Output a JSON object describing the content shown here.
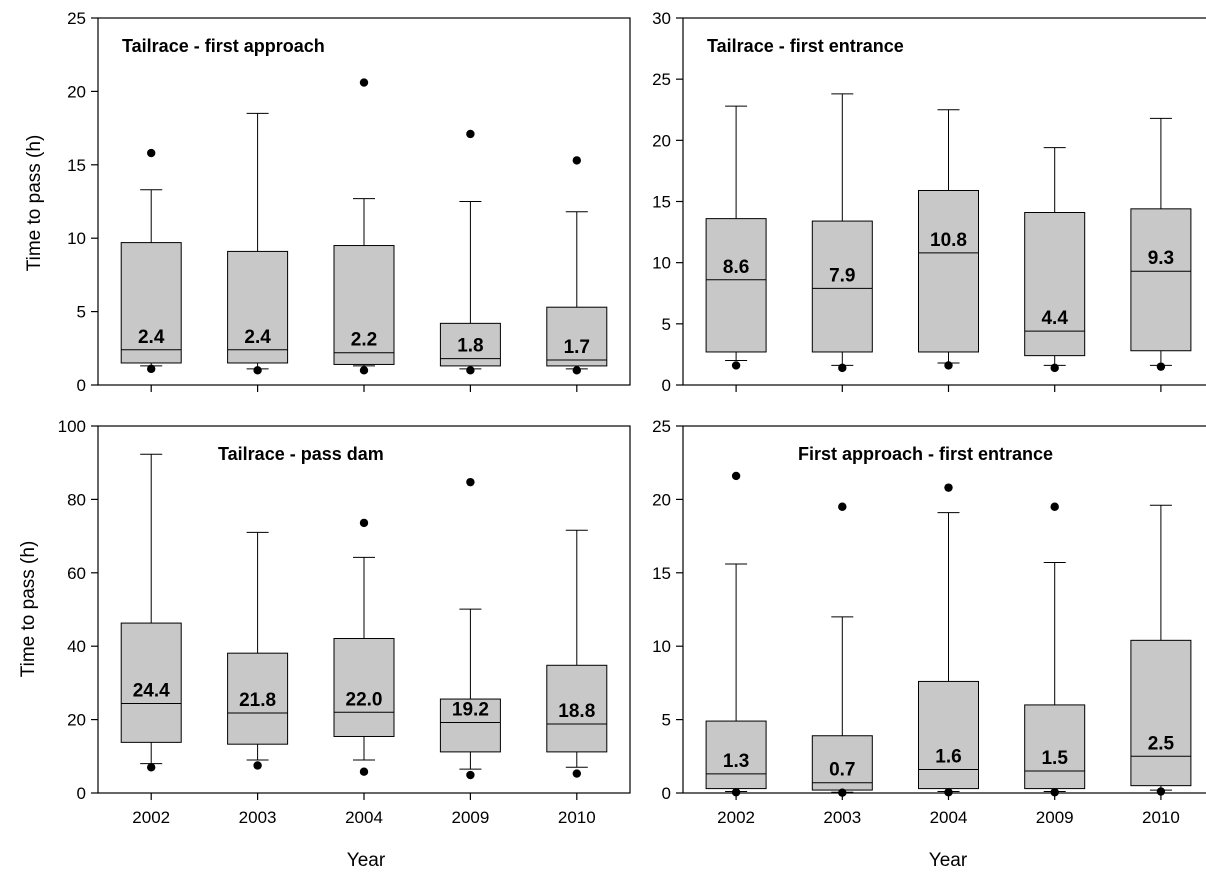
{
  "x_axis_title": "Year",
  "y_axis_title": "Time to pass (h)",
  "colors": {
    "box_fill": "#c8c8c8",
    "stroke": "#000000",
    "background": "#ffffff"
  },
  "chart_data": [
    {
      "type": "boxplot",
      "title": "Tailrace - first approach",
      "xlabel": "",
      "ylabel": "Time to pass (h)",
      "ylim": [
        0,
        25
      ],
      "yticks": [
        0,
        5,
        10,
        15,
        20,
        25
      ],
      "categories": [
        "2002",
        "2003",
        "2004",
        "2009",
        "2010"
      ],
      "boxes": [
        {
          "category": "2002",
          "whisker_low": 1.3,
          "q1": 1.5,
          "median": 2.4,
          "q3": 9.7,
          "whisker_high": 13.3,
          "outliers": [
            1.1,
            15.8
          ],
          "median_label": "2.4"
        },
        {
          "category": "2003",
          "whisker_low": 1.1,
          "q1": 1.5,
          "median": 2.4,
          "q3": 9.1,
          "whisker_high": 18.5,
          "outliers": [
            1.0
          ],
          "median_label": "2.4"
        },
        {
          "category": "2004",
          "whisker_low": 1.3,
          "q1": 1.4,
          "median": 2.2,
          "q3": 9.5,
          "whisker_high": 12.7,
          "outliers": [
            1.0,
            20.6
          ],
          "median_label": "2.2"
        },
        {
          "category": "2009",
          "whisker_low": 1.1,
          "q1": 1.3,
          "median": 1.8,
          "q3": 4.2,
          "whisker_high": 12.5,
          "outliers": [
            1.0,
            17.1
          ],
          "median_label": "1.8"
        },
        {
          "category": "2010",
          "whisker_low": 1.1,
          "q1": 1.3,
          "median": 1.7,
          "q3": 5.3,
          "whisker_high": 11.8,
          "outliers": [
            1.0,
            15.3
          ],
          "median_label": "1.7"
        }
      ]
    },
    {
      "type": "boxplot",
      "title": "Tailrace - first entrance",
      "xlabel": "",
      "ylabel": "",
      "ylim": [
        0,
        30
      ],
      "yticks": [
        0,
        5,
        10,
        15,
        20,
        25,
        30
      ],
      "categories": [
        "2002",
        "2003",
        "2004",
        "2009",
        "2010"
      ],
      "boxes": [
        {
          "category": "2002",
          "whisker_low": 2.0,
          "q1": 2.7,
          "median": 8.6,
          "q3": 13.6,
          "whisker_high": 22.8,
          "outliers": [
            1.6
          ],
          "median_label": "8.6"
        },
        {
          "category": "2003",
          "whisker_low": 1.6,
          "q1": 2.7,
          "median": 7.9,
          "q3": 13.4,
          "whisker_high": 23.8,
          "outliers": [
            1.4
          ],
          "median_label": "7.9"
        },
        {
          "category": "2004",
          "whisker_low": 1.8,
          "q1": 2.7,
          "median": 10.8,
          "q3": 15.9,
          "whisker_high": 22.5,
          "outliers": [
            1.6
          ],
          "median_label": "10.8"
        },
        {
          "category": "2009",
          "whisker_low": 1.6,
          "q1": 2.4,
          "median": 4.4,
          "q3": 14.1,
          "whisker_high": 19.4,
          "outliers": [
            1.4
          ],
          "median_label": "4.4"
        },
        {
          "category": "2010",
          "whisker_low": 1.6,
          "q1": 2.8,
          "median": 9.3,
          "q3": 14.4,
          "whisker_high": 21.8,
          "outliers": [
            1.5
          ],
          "median_label": "9.3"
        }
      ]
    },
    {
      "type": "boxplot",
      "title": "Tailrace - pass dam",
      "xlabel": "Year",
      "ylabel": "Time to pass (h)",
      "ylim": [
        0,
        100
      ],
      "yticks": [
        0,
        20,
        40,
        60,
        80,
        100
      ],
      "categories": [
        "2002",
        "2003",
        "2004",
        "2009",
        "2010"
      ],
      "boxes": [
        {
          "category": "2002",
          "whisker_low": 8.0,
          "q1": 13.8,
          "median": 24.4,
          "q3": 46.3,
          "whisker_high": 92.3,
          "outliers": [
            7.0
          ],
          "median_label": "24.4"
        },
        {
          "category": "2003",
          "whisker_low": 9.0,
          "q1": 13.3,
          "median": 21.8,
          "q3": 38.1,
          "whisker_high": 71.0,
          "outliers": [
            7.5
          ],
          "median_label": "21.8"
        },
        {
          "category": "2004",
          "whisker_low": 9.0,
          "q1": 15.4,
          "median": 22.0,
          "q3": 42.1,
          "whisker_high": 64.2,
          "outliers": [
            5.8,
            73.6
          ],
          "median_label": "22.0"
        },
        {
          "category": "2009",
          "whisker_low": 6.5,
          "q1": 11.2,
          "median": 19.2,
          "q3": 25.6,
          "whisker_high": 50.1,
          "outliers": [
            4.9,
            84.7
          ],
          "median_label": "19.2"
        },
        {
          "category": "2010",
          "whisker_low": 7.0,
          "q1": 11.2,
          "median": 18.8,
          "q3": 34.8,
          "whisker_high": 71.6,
          "outliers": [
            5.3
          ],
          "median_label": "18.8"
        }
      ]
    },
    {
      "type": "boxplot",
      "title": "First approach - first entrance",
      "xlabel": "Year",
      "ylabel": "",
      "ylim": [
        0,
        25
      ],
      "yticks": [
        0,
        5,
        10,
        15,
        20,
        25
      ],
      "categories": [
        "2002",
        "2003",
        "2004",
        "2009",
        "2010"
      ],
      "boxes": [
        {
          "category": "2002",
          "whisker_low": 0.1,
          "q1": 0.3,
          "median": 1.3,
          "q3": 4.9,
          "whisker_high": 15.6,
          "outliers": [
            0.05,
            21.6
          ],
          "median_label": "1.3"
        },
        {
          "category": "2003",
          "whisker_low": 0.05,
          "q1": 0.2,
          "median": 0.7,
          "q3": 3.9,
          "whisker_high": 12.0,
          "outliers": [
            0.02,
            19.5
          ],
          "median_label": "0.7"
        },
        {
          "category": "2004",
          "whisker_low": 0.1,
          "q1": 0.3,
          "median": 1.6,
          "q3": 7.6,
          "whisker_high": 19.1,
          "outliers": [
            0.05,
            20.8
          ],
          "median_label": "1.6"
        },
        {
          "category": "2009",
          "whisker_low": 0.1,
          "q1": 0.3,
          "median": 1.5,
          "q3": 6.0,
          "whisker_high": 15.7,
          "outliers": [
            0.05,
            19.5
          ],
          "median_label": "1.5"
        },
        {
          "category": "2010",
          "whisker_low": 0.2,
          "q1": 0.5,
          "median": 2.5,
          "q3": 10.4,
          "whisker_high": 19.6,
          "outliers": [
            0.1
          ],
          "median_label": "2.5"
        }
      ]
    }
  ]
}
